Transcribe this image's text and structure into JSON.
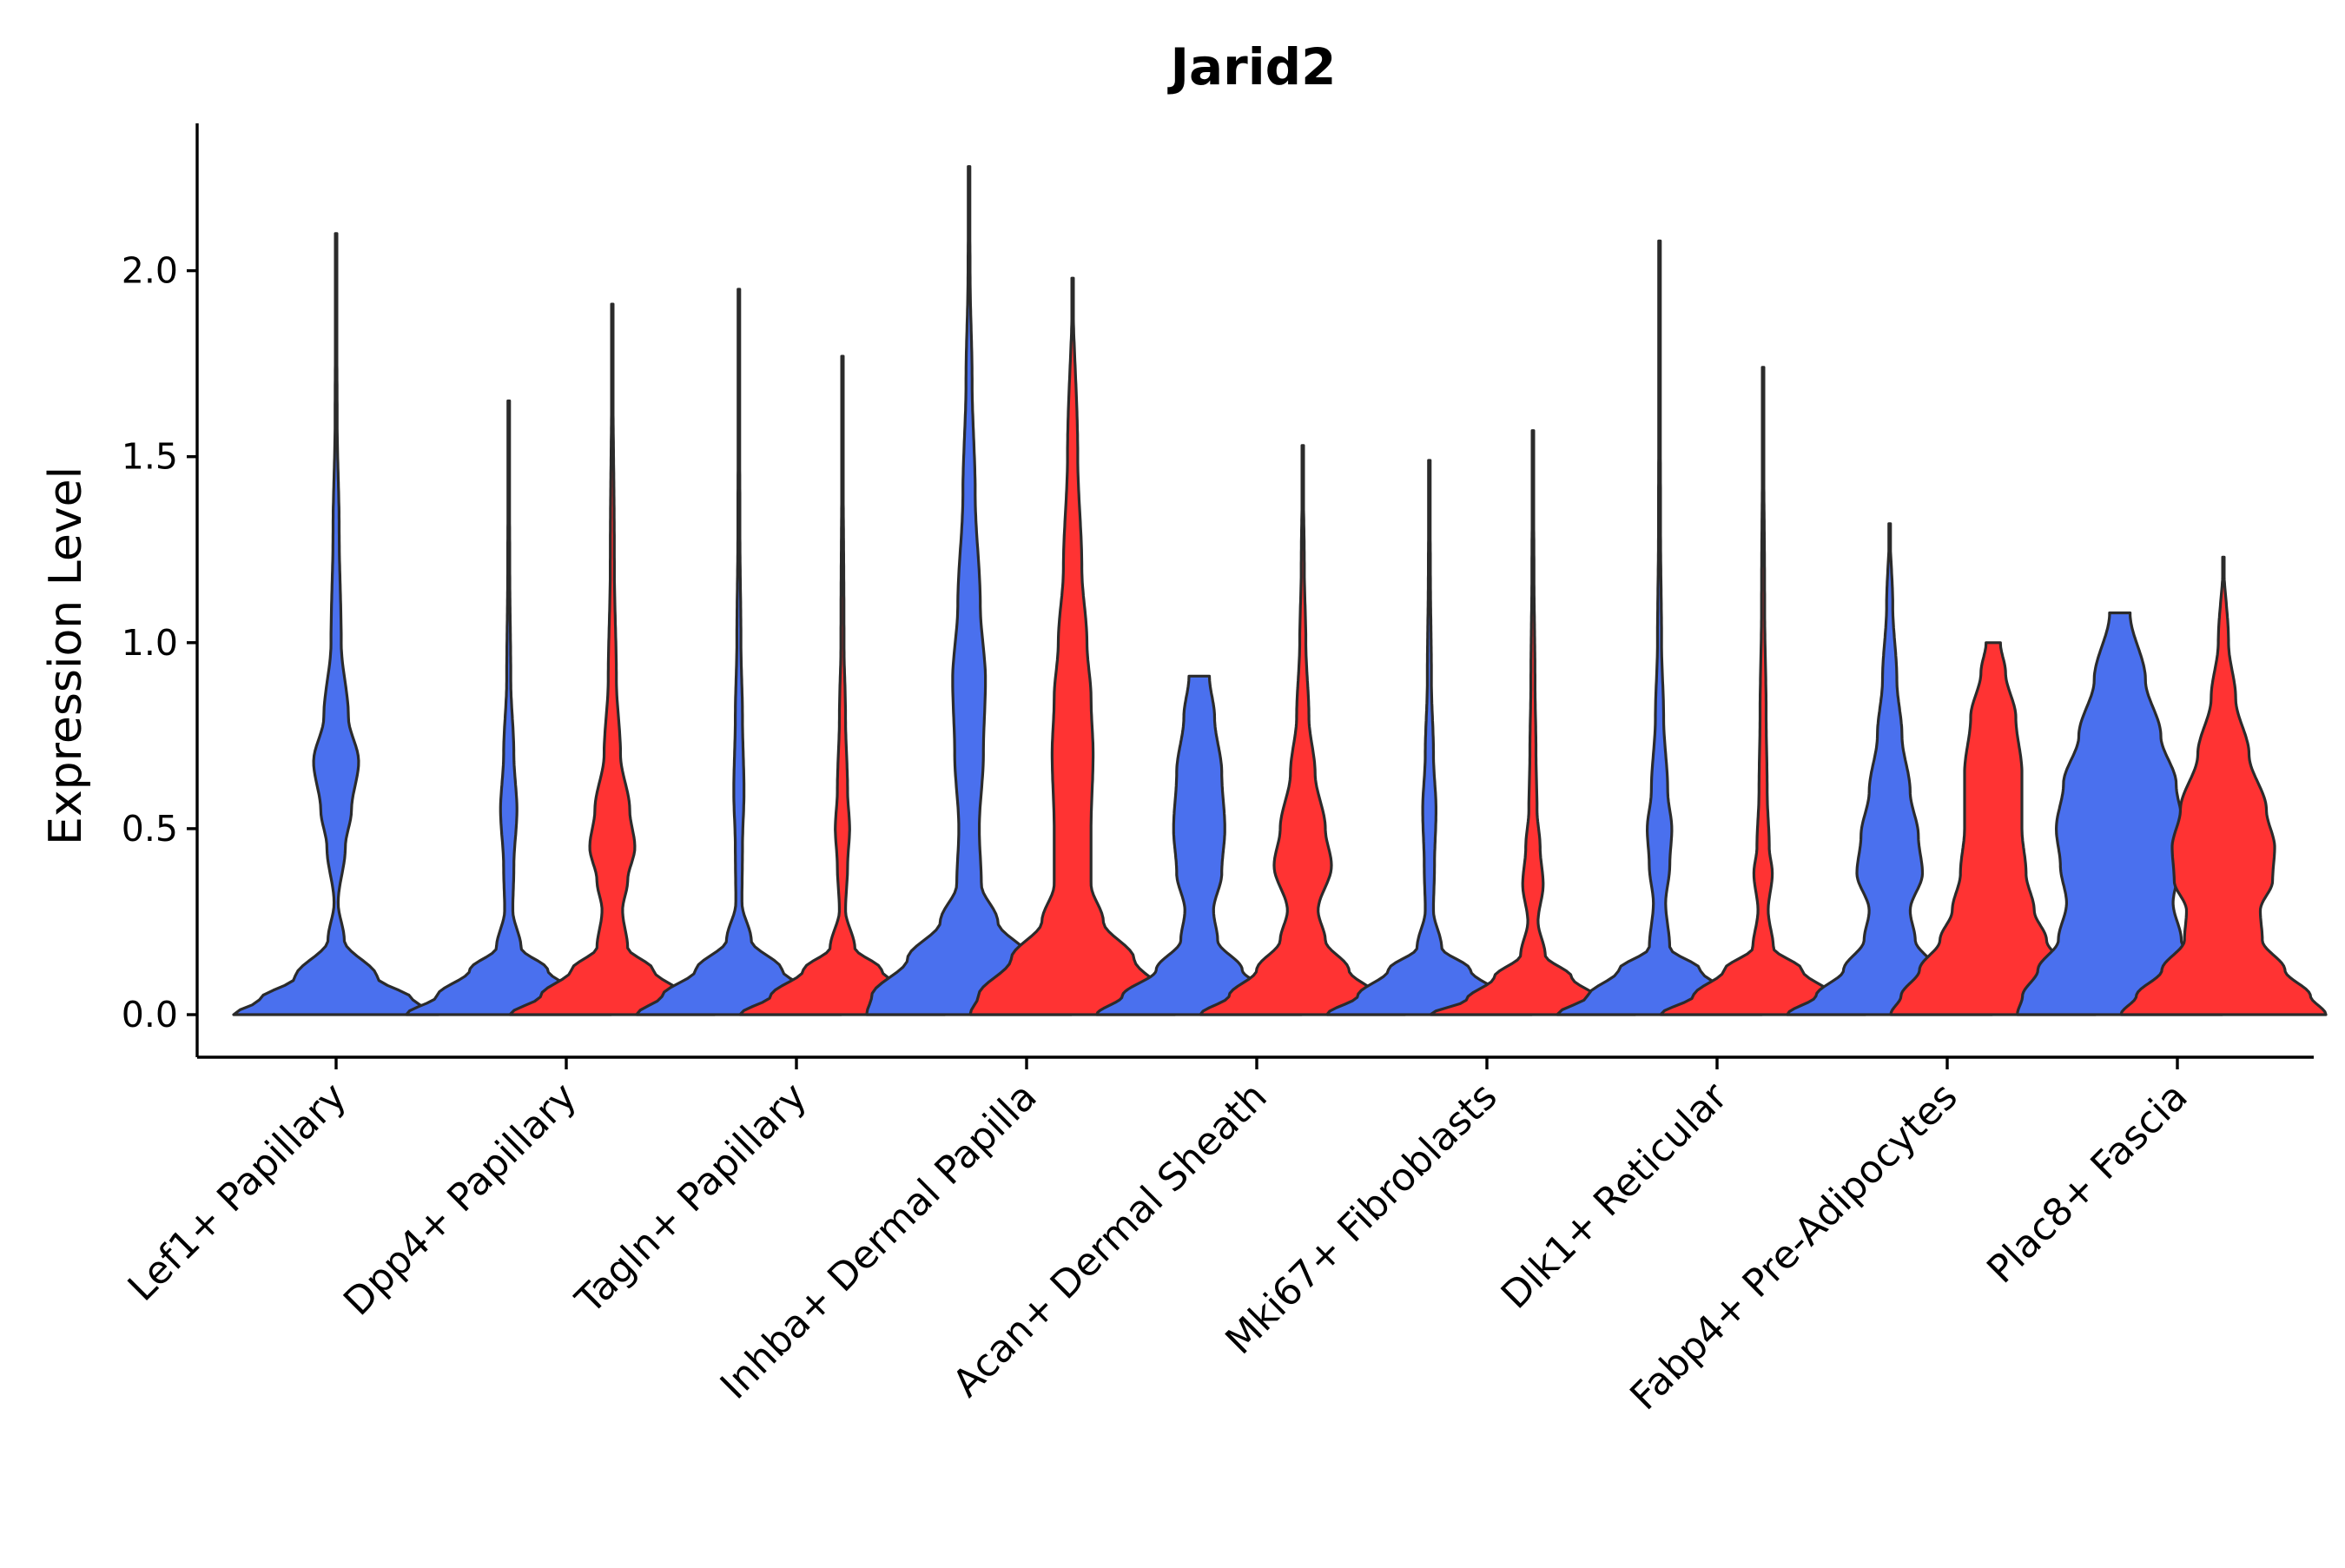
{
  "chart_data": {
    "type": "violin",
    "title": "Jarid2",
    "xlabel": "",
    "ylabel": "Expression Level",
    "ylim": [
      -0.11,
      2.4
    ],
    "yticks": [
      0.0,
      0.5,
      1.0,
      1.5,
      2.0
    ],
    "ytick_labels": [
      "0.0",
      "0.5",
      "1.0",
      "1.5",
      "2.0"
    ],
    "grid": false,
    "legend": "none",
    "colors": {
      "group_a": "#4A70EE",
      "group_b": "#FF3333",
      "outline": "#2b2b2b"
    },
    "categories": [
      "Lef1+ Papillary",
      "Dpp4+ Papillary",
      "Tagln+ Papillary",
      "Inhba+ Dermal Papilla",
      "Acan+ Dermal Sheath",
      "Mki67+ Fibroblasts",
      "Dlk1+ Reticular",
      "Fabp4+ Pre-Adipocytes",
      "Plac8+ Fascia"
    ],
    "violins": [
      {
        "category": "Lef1+ Papillary",
        "group": "a",
        "center": 0.0,
        "max": 2.1,
        "profile": [
          [
            0.0,
            1.0
          ],
          [
            0.04,
            0.75
          ],
          [
            0.1,
            0.4
          ],
          [
            0.2,
            0.08
          ],
          [
            0.3,
            0.02
          ],
          [
            0.45,
            0.09
          ],
          [
            0.55,
            0.15
          ],
          [
            0.68,
            0.22
          ],
          [
            0.8,
            0.12
          ],
          [
            1.0,
            0.05
          ],
          [
            1.3,
            0.03
          ],
          [
            1.6,
            0.01
          ],
          [
            2.1,
            0.0
          ]
        ]
      },
      {
        "category": "Dpp4+ Papillary",
        "group": "a",
        "center": -0.25,
        "max": 1.65,
        "profile": [
          [
            0.0,
            1.0
          ],
          [
            0.05,
            0.7
          ],
          [
            0.12,
            0.38
          ],
          [
            0.18,
            0.12
          ],
          [
            0.28,
            0.04
          ],
          [
            0.4,
            0.05
          ],
          [
            0.55,
            0.08
          ],
          [
            0.7,
            0.05
          ],
          [
            0.9,
            0.02
          ],
          [
            1.2,
            0.01
          ],
          [
            1.65,
            0.0
          ]
        ]
      },
      {
        "category": "Dpp4+ Papillary",
        "group": "b",
        "center": 0.2,
        "max": 1.91,
        "profile": [
          [
            0.0,
            1.0
          ],
          [
            0.05,
            0.7
          ],
          [
            0.12,
            0.4
          ],
          [
            0.18,
            0.15
          ],
          [
            0.28,
            0.1
          ],
          [
            0.36,
            0.15
          ],
          [
            0.45,
            0.22
          ],
          [
            0.55,
            0.17
          ],
          [
            0.7,
            0.08
          ],
          [
            0.9,
            0.04
          ],
          [
            1.2,
            0.02
          ],
          [
            1.91,
            0.0
          ]
        ]
      },
      {
        "category": "Tagln+ Papillary",
        "group": "a",
        "center": -0.25,
        "max": 1.95,
        "profile": [
          [
            0.0,
            1.0
          ],
          [
            0.05,
            0.75
          ],
          [
            0.12,
            0.42
          ],
          [
            0.2,
            0.12
          ],
          [
            0.3,
            0.03
          ],
          [
            0.45,
            0.035
          ],
          [
            0.6,
            0.05
          ],
          [
            0.8,
            0.035
          ],
          [
            1.0,
            0.02
          ],
          [
            1.3,
            0.01
          ],
          [
            1.95,
            0.0
          ]
        ]
      },
      {
        "category": "Tagln+ Papillary",
        "group": "b",
        "center": 0.2,
        "max": 1.77,
        "profile": [
          [
            0.0,
            1.0
          ],
          [
            0.05,
            0.7
          ],
          [
            0.12,
            0.38
          ],
          [
            0.18,
            0.12
          ],
          [
            0.28,
            0.03
          ],
          [
            0.4,
            0.05
          ],
          [
            0.5,
            0.07
          ],
          [
            0.6,
            0.05
          ],
          [
            0.8,
            0.03
          ],
          [
            1.0,
            0.015
          ],
          [
            1.77,
            0.0
          ]
        ]
      },
      {
        "category": "Inhba+ Dermal Papilla",
        "group": "a",
        "center": -0.25,
        "max": 2.28,
        "profile": [
          [
            0.0,
            1.0
          ],
          [
            0.05,
            0.95
          ],
          [
            0.15,
            0.6
          ],
          [
            0.25,
            0.28
          ],
          [
            0.35,
            0.12
          ],
          [
            0.5,
            0.1
          ],
          [
            0.7,
            0.14
          ],
          [
            0.9,
            0.16
          ],
          [
            1.1,
            0.11
          ],
          [
            1.4,
            0.06
          ],
          [
            1.7,
            0.03
          ],
          [
            2.0,
            0.01
          ],
          [
            2.28,
            0.0
          ]
        ]
      },
      {
        "category": "Inhba+ Dermal Papilla",
        "group": "b",
        "center": 0.2,
        "max": 1.98,
        "profile": [
          [
            0.0,
            1.0
          ],
          [
            0.05,
            0.92
          ],
          [
            0.15,
            0.6
          ],
          [
            0.25,
            0.3
          ],
          [
            0.35,
            0.18
          ],
          [
            0.5,
            0.18
          ],
          [
            0.7,
            0.2
          ],
          [
            0.85,
            0.18
          ],
          [
            1.0,
            0.14
          ],
          [
            1.2,
            0.09
          ],
          [
            1.5,
            0.05
          ],
          [
            1.98,
            0.0
          ]
        ]
      },
      {
        "category": "Acan+ Dermal Sheath",
        "group": "a",
        "center": -0.25,
        "max": 0.91,
        "profile": [
          [
            0.0,
            1.0
          ],
          [
            0.05,
            0.75
          ],
          [
            0.12,
            0.42
          ],
          [
            0.2,
            0.18
          ],
          [
            0.28,
            0.14
          ],
          [
            0.38,
            0.22
          ],
          [
            0.5,
            0.25
          ],
          [
            0.65,
            0.22
          ],
          [
            0.8,
            0.15
          ],
          [
            0.91,
            0.1
          ]
        ]
      },
      {
        "category": "Acan+ Dermal Sheath",
        "group": "b",
        "center": 0.2,
        "max": 1.53,
        "profile": [
          [
            0.0,
            1.0
          ],
          [
            0.05,
            0.72
          ],
          [
            0.12,
            0.45
          ],
          [
            0.2,
            0.22
          ],
          [
            0.28,
            0.15
          ],
          [
            0.4,
            0.28
          ],
          [
            0.5,
            0.22
          ],
          [
            0.65,
            0.12
          ],
          [
            0.8,
            0.06
          ],
          [
            1.0,
            0.03
          ],
          [
            1.2,
            0.015
          ],
          [
            1.53,
            0.0
          ]
        ]
      },
      {
        "category": "Mki67+ Fibroblasts",
        "group": "a",
        "center": -0.25,
        "max": 1.49,
        "profile": [
          [
            0.0,
            1.0
          ],
          [
            0.05,
            0.7
          ],
          [
            0.12,
            0.4
          ],
          [
            0.18,
            0.12
          ],
          [
            0.28,
            0.04
          ],
          [
            0.4,
            0.05
          ],
          [
            0.55,
            0.065
          ],
          [
            0.7,
            0.04
          ],
          [
            0.9,
            0.02
          ],
          [
            1.2,
            0.01
          ],
          [
            1.49,
            0.0
          ]
        ]
      },
      {
        "category": "Mki67+ Fibroblasts",
        "group": "b",
        "center": 0.2,
        "max": 1.57,
        "profile": [
          [
            0.0,
            1.0
          ],
          [
            0.04,
            0.65
          ],
          [
            0.1,
            0.38
          ],
          [
            0.16,
            0.12
          ],
          [
            0.25,
            0.05
          ],
          [
            0.35,
            0.1
          ],
          [
            0.45,
            0.07
          ],
          [
            0.55,
            0.04
          ],
          [
            0.7,
            0.03
          ],
          [
            0.9,
            0.02
          ],
          [
            1.2,
            0.01
          ],
          [
            1.57,
            0.0
          ]
        ]
      },
      {
        "category": "Dlk1+ Reticular",
        "group": "a",
        "center": -0.25,
        "max": 2.08,
        "profile": [
          [
            0.0,
            1.0
          ],
          [
            0.05,
            0.7
          ],
          [
            0.12,
            0.4
          ],
          [
            0.18,
            0.1
          ],
          [
            0.3,
            0.06
          ],
          [
            0.4,
            0.1
          ],
          [
            0.5,
            0.12
          ],
          [
            0.6,
            0.08
          ],
          [
            0.8,
            0.04
          ],
          [
            1.0,
            0.02
          ],
          [
            1.3,
            0.01
          ],
          [
            2.08,
            0.0
          ]
        ]
      },
      {
        "category": "Dlk1+ Reticular",
        "group": "b",
        "center": 0.2,
        "max": 1.74,
        "profile": [
          [
            0.0,
            1.0
          ],
          [
            0.05,
            0.68
          ],
          [
            0.12,
            0.38
          ],
          [
            0.18,
            0.1
          ],
          [
            0.28,
            0.05
          ],
          [
            0.38,
            0.09
          ],
          [
            0.45,
            0.06
          ],
          [
            0.6,
            0.04
          ],
          [
            0.8,
            0.03
          ],
          [
            1.1,
            0.015
          ],
          [
            1.74,
            0.0
          ]
        ]
      },
      {
        "category": "Fabp4+ Pre-Adipocytes",
        "group": "a",
        "center": -0.25,
        "max": 1.32,
        "profile": [
          [
            0.0,
            1.0
          ],
          [
            0.05,
            0.72
          ],
          [
            0.12,
            0.45
          ],
          [
            0.2,
            0.25
          ],
          [
            0.28,
            0.2
          ],
          [
            0.38,
            0.32
          ],
          [
            0.48,
            0.28
          ],
          [
            0.6,
            0.2
          ],
          [
            0.75,
            0.12
          ],
          [
            0.9,
            0.07
          ],
          [
            1.1,
            0.03
          ],
          [
            1.32,
            0.0
          ]
        ]
      },
      {
        "category": "Fabp4+ Pre-Adipocytes",
        "group": "b",
        "center": 0.2,
        "max": 1.0,
        "profile": [
          [
            0.0,
            1.0
          ],
          [
            0.05,
            0.9
          ],
          [
            0.12,
            0.72
          ],
          [
            0.2,
            0.52
          ],
          [
            0.28,
            0.4
          ],
          [
            0.38,
            0.32
          ],
          [
            0.5,
            0.28
          ],
          [
            0.65,
            0.28
          ],
          [
            0.8,
            0.22
          ],
          [
            0.92,
            0.12
          ],
          [
            1.0,
            0.07
          ]
        ]
      },
      {
        "category": "Plac8+ Fascia",
        "group": "a",
        "center": -0.25,
        "max": 1.08,
        "profile": [
          [
            0.0,
            1.0
          ],
          [
            0.05,
            0.95
          ],
          [
            0.12,
            0.8
          ],
          [
            0.2,
            0.6
          ],
          [
            0.3,
            0.52
          ],
          [
            0.4,
            0.58
          ],
          [
            0.5,
            0.62
          ],
          [
            0.62,
            0.55
          ],
          [
            0.75,
            0.4
          ],
          [
            0.9,
            0.25
          ],
          [
            1.08,
            0.1
          ]
        ]
      },
      {
        "category": "Plac8+ Fascia",
        "group": "b",
        "center": 0.2,
        "max": 1.23,
        "profile": [
          [
            0.0,
            1.0
          ],
          [
            0.05,
            0.85
          ],
          [
            0.12,
            0.6
          ],
          [
            0.2,
            0.38
          ],
          [
            0.28,
            0.36
          ],
          [
            0.36,
            0.48
          ],
          [
            0.45,
            0.5
          ],
          [
            0.55,
            0.42
          ],
          [
            0.7,
            0.25
          ],
          [
            0.85,
            0.12
          ],
          [
            1.0,
            0.05
          ],
          [
            1.23,
            0.0
          ]
        ]
      }
    ]
  }
}
